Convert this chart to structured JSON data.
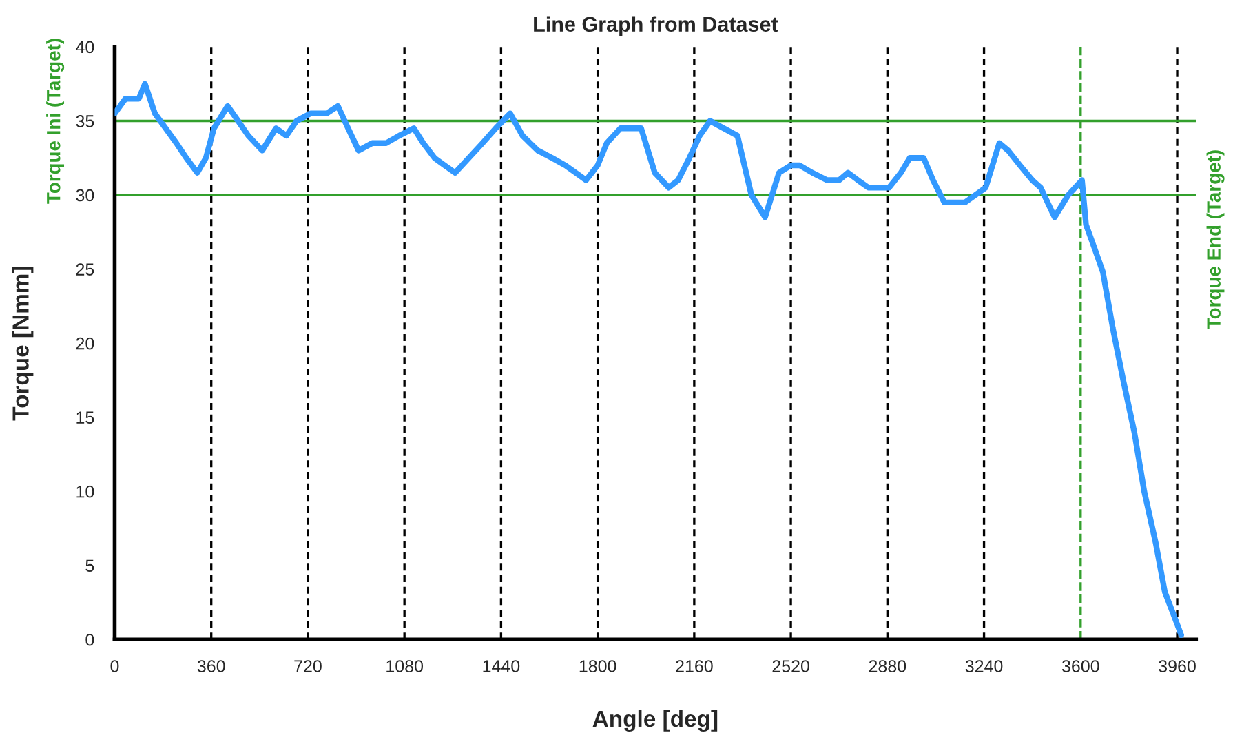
{
  "chart_data": {
    "type": "line",
    "title": "Line Graph from Dataset",
    "xlabel": "Angle [deg]",
    "ylabel": "Torque [Nmm]",
    "x": [
      0,
      40,
      90,
      113,
      150,
      190,
      230,
      267,
      308,
      340,
      370,
      421,
      460,
      498,
      550,
      601,
      640,
      678,
      730,
      790,
      832,
      870,
      909,
      960,
      1012,
      1060,
      1115,
      1150,
      1192,
      1230,
      1269,
      1320,
      1371,
      1420,
      1474,
      1520,
      1577,
      1630,
      1680,
      1757,
      1800,
      1834,
      1885,
      1936,
      1962,
      2013,
      2065,
      2100,
      2142,
      2180,
      2219,
      2270,
      2321,
      2373,
      2424,
      2476,
      2520,
      2553,
      2600,
      2655,
      2700,
      2733,
      2770,
      2809,
      2886,
      2930,
      2963,
      3015,
      3050,
      3092,
      3169,
      3246,
      3297,
      3330,
      3374,
      3420,
      3451,
      3503,
      3554,
      3605,
      3620,
      3650,
      3683,
      3720,
      3760,
      3800,
      3837,
      3880,
      3914,
      3950,
      3975
    ],
    "series": [
      {
        "color": "#3399ff",
        "values": [
          35.5,
          36.5,
          36.5,
          37.5,
          35.5,
          34.5,
          33.5,
          32.5,
          31.5,
          32.5,
          34.5,
          36,
          35,
          34,
          33,
          34.5,
          34,
          35,
          35.5,
          35.5,
          36,
          34.5,
          33,
          33.5,
          33.5,
          34,
          34.5,
          33.5,
          32.5,
          32,
          31.5,
          32.5,
          33.5,
          34.5,
          35.5,
          34,
          33,
          32.5,
          32,
          31,
          32,
          33.5,
          34.5,
          34.5,
          34.5,
          31.5,
          30.5,
          31,
          32.5,
          34,
          35,
          34.5,
          34,
          30,
          28.5,
          31.5,
          32,
          32,
          31.5,
          31,
          31,
          31.5,
          31,
          30.5,
          30.5,
          31.5,
          32.5,
          32.5,
          31,
          29.5,
          29.5,
          30.5,
          33.5,
          33,
          32,
          31,
          30.5,
          28.5,
          30,
          31,
          28,
          26.5,
          24.8,
          21,
          17.4,
          14,
          10,
          6.5,
          3.2,
          1.5,
          0.3
        ]
      }
    ],
    "xlim": [
      0,
      4030
    ],
    "ylim": [
      0,
      40
    ],
    "xticks": [
      0,
      360,
      720,
      1080,
      1440,
      1800,
      2160,
      2520,
      2880,
      3240,
      3600,
      3960
    ],
    "yticks": [
      0,
      5,
      10,
      15,
      20,
      25,
      30,
      35,
      40
    ],
    "grid": "x",
    "ref_lines": [
      {
        "axis": "y",
        "value": 35,
        "label": "Torque Ini (Target)",
        "color": "#33a02c"
      },
      {
        "axis": "y",
        "value": 30,
        "label": "Torque End (Target)",
        "color": "#33a02c"
      },
      {
        "axis": "x",
        "value": 3600,
        "color": "#33a02c",
        "line_style": "dashed"
      }
    ]
  }
}
